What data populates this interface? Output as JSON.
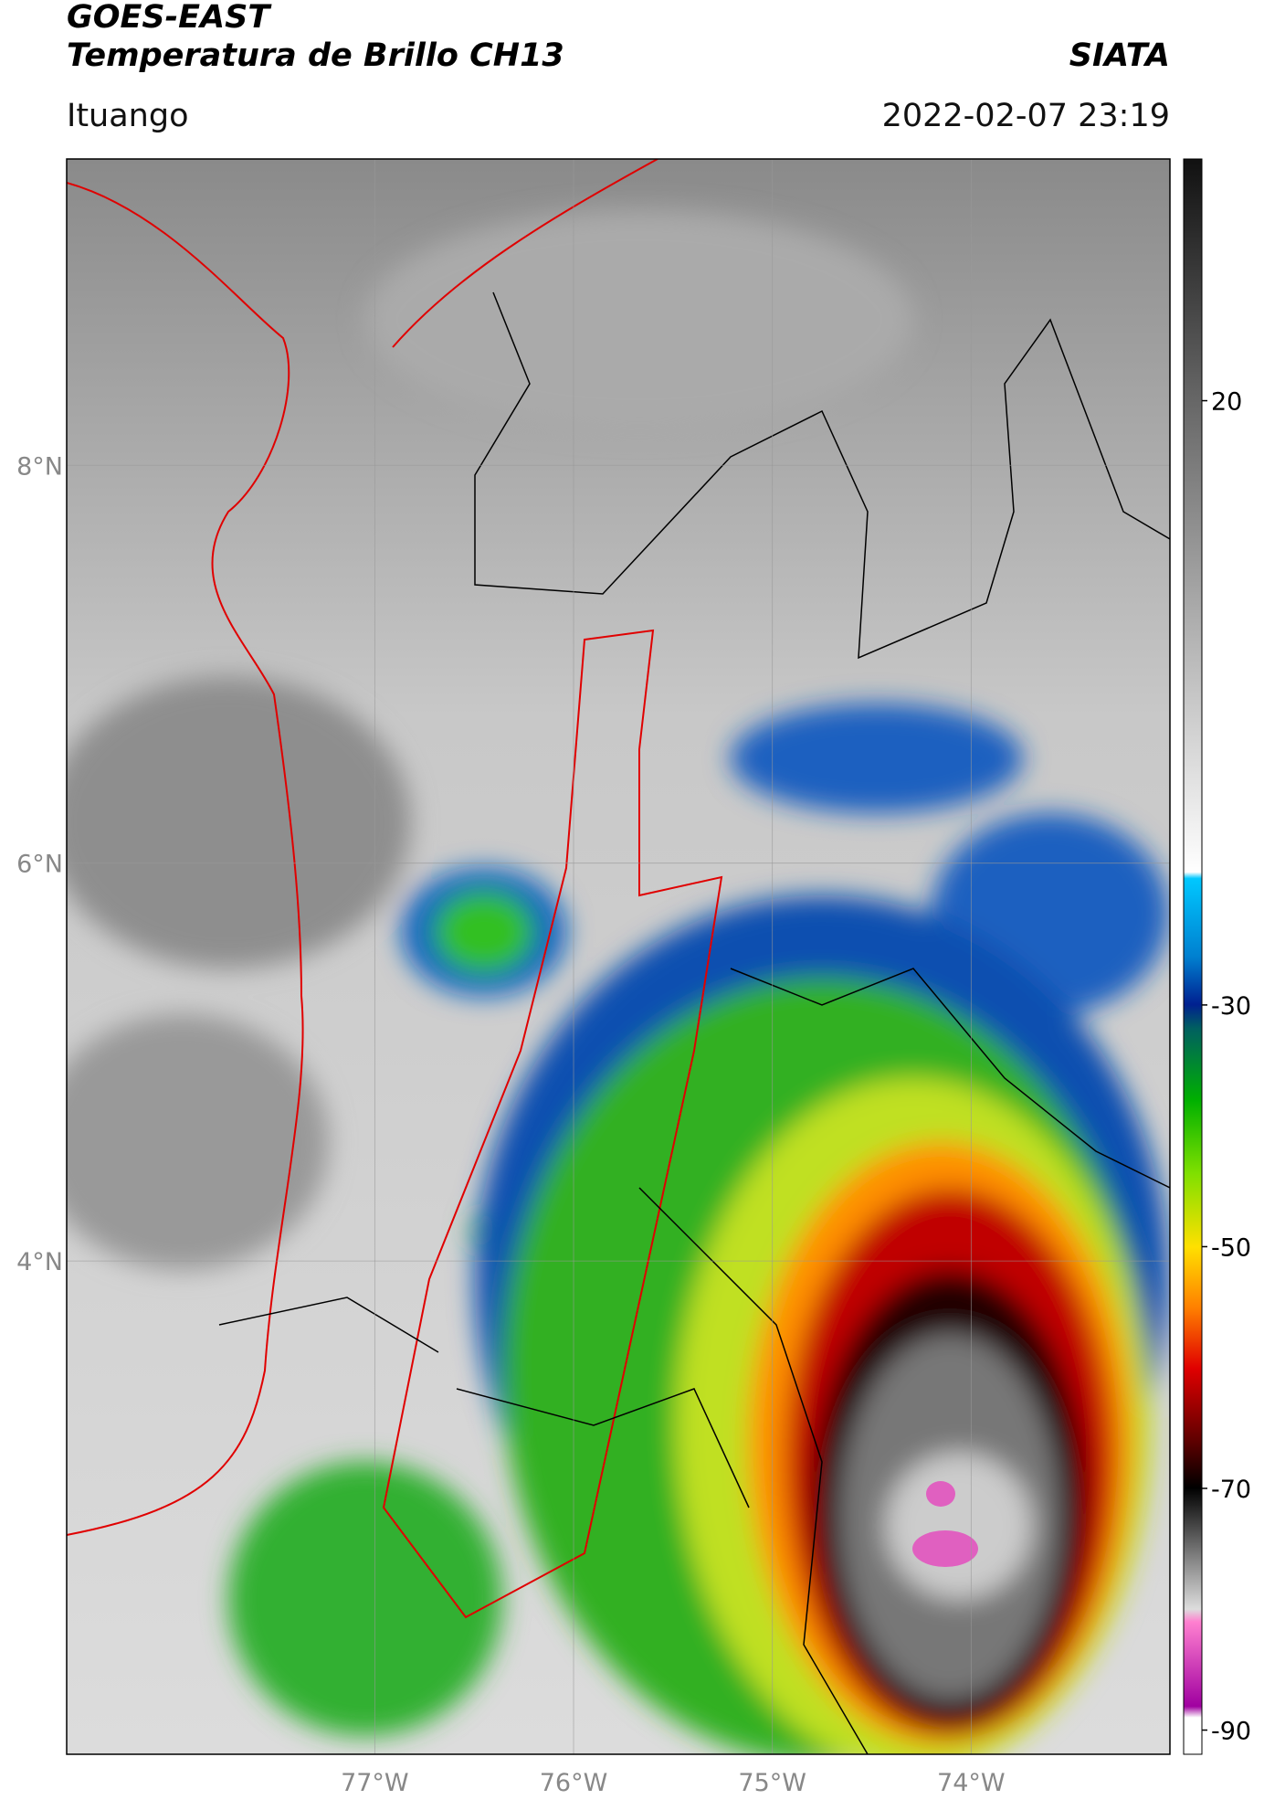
{
  "header": {
    "title": "GOES-EAST",
    "subtitle": "Temperatura de Brillo CH13",
    "org": "SIATA",
    "region": "Ituango",
    "datetime": "2022-02-07 23:19"
  },
  "map": {
    "xlim": [
      -78.55,
      -73.0
    ],
    "ylim": [
      1.52,
      9.54
    ],
    "xticks": [
      {
        "value": -77,
        "label": "77°W"
      },
      {
        "value": -76,
        "label": "76°W"
      },
      {
        "value": -75,
        "label": "75°W"
      },
      {
        "value": -74,
        "label": "74°W"
      }
    ],
    "yticks": [
      {
        "value": 8,
        "label": "8°N"
      },
      {
        "value": 6,
        "label": "6°N"
      },
      {
        "value": 4,
        "label": "4°N"
      }
    ],
    "grid": true
  },
  "colorbar": {
    "lim": [
      -92,
      40
    ],
    "ticks": [
      20,
      -30,
      -50,
      -70,
      -90
    ]
  }
}
